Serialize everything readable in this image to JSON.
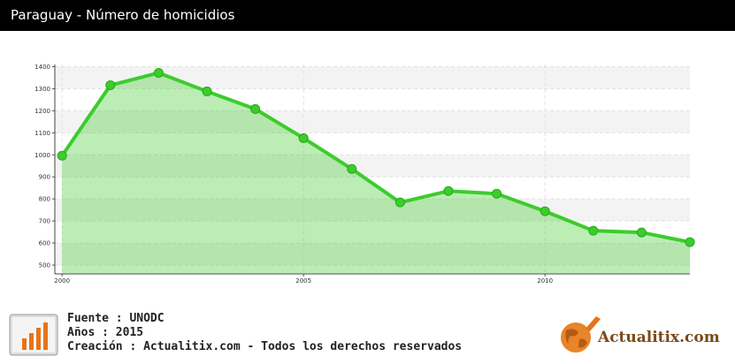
{
  "chart_data": {
    "type": "area",
    "title": "Paraguay - Número de homicidios",
    "x": [
      2000,
      2001,
      2002,
      2003,
      2004,
      2005,
      2006,
      2007,
      2008,
      2009,
      2010,
      2011,
      2012,
      2013
    ],
    "series": [
      {
        "color": "#3ccc2c",
        "values": [
          996,
          1316,
          1372,
          1288,
          1208,
          1076,
          936,
          784,
          836,
          824,
          744,
          656,
          648,
          604
        ]
      }
    ],
    "xlim": [
      1999.85,
      2013
    ],
    "xticks": [
      2000,
      2005,
      2010
    ],
    "ylim": [
      460,
      1410
    ],
    "yticks": [
      500,
      600,
      700,
      800,
      900,
      1000,
      1100,
      1200,
      1300,
      1400
    ],
    "grid": true
  },
  "footer": {
    "source": "Fuente : UNODC",
    "years": "Años : 2015",
    "creation": "Creación : Actualitix.com - Todos los derechos reservados",
    "logo": "Actualitix.com"
  }
}
